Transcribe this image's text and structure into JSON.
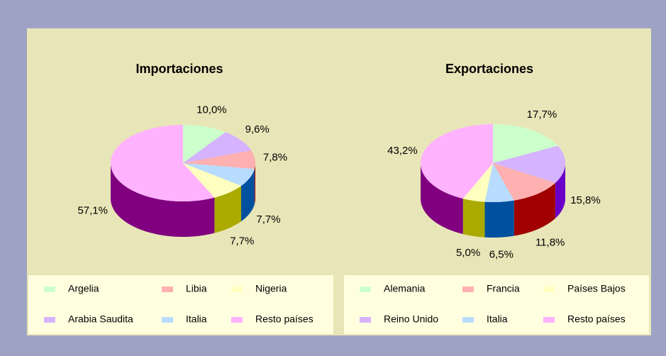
{
  "chart_data": [
    {
      "type": "pie",
      "title": "Importaciones",
      "categories": [
        "Argelia",
        "Arabia Saudita",
        "Libia",
        "Italia",
        "Nigeria",
        "Resto países"
      ],
      "values": [
        10.0,
        9.6,
        7.8,
        7.7,
        7.7,
        57.1
      ],
      "value_labels": [
        "10,0%",
        "9,6%",
        "7,8%",
        "7,7%",
        "7,7%",
        "57,1%"
      ],
      "colors": [
        "#ccffcc",
        "#d5b3ff",
        "#ffb0b0",
        "#b8dcff",
        "#ffffc0",
        "#ffb3ff"
      ],
      "side_colors": [
        "#4f8f4f",
        "#6a00c8",
        "#a00000",
        "#0050a0",
        "#aaaa00",
        "#800080"
      ]
    },
    {
      "type": "pie",
      "title": "Exportaciones",
      "categories": [
        "Alemania",
        "Reino Unido",
        "Francia",
        "Italia",
        "Países Bajos",
        "Resto países"
      ],
      "values": [
        17.7,
        15.8,
        11.8,
        6.5,
        5.0,
        43.2
      ],
      "value_labels": [
        "17,7%",
        "15,8%",
        "11,8%",
        "6,5%",
        "5,0%",
        "43,2%"
      ],
      "colors": [
        "#ccffcc",
        "#d5b3ff",
        "#ffb0b0",
        "#b8dcff",
        "#ffffc0",
        "#ffb3ff"
      ],
      "side_colors": [
        "#4f8f4f",
        "#6a00c8",
        "#a00000",
        "#0050a0",
        "#aaaa00",
        "#800080"
      ]
    }
  ]
}
